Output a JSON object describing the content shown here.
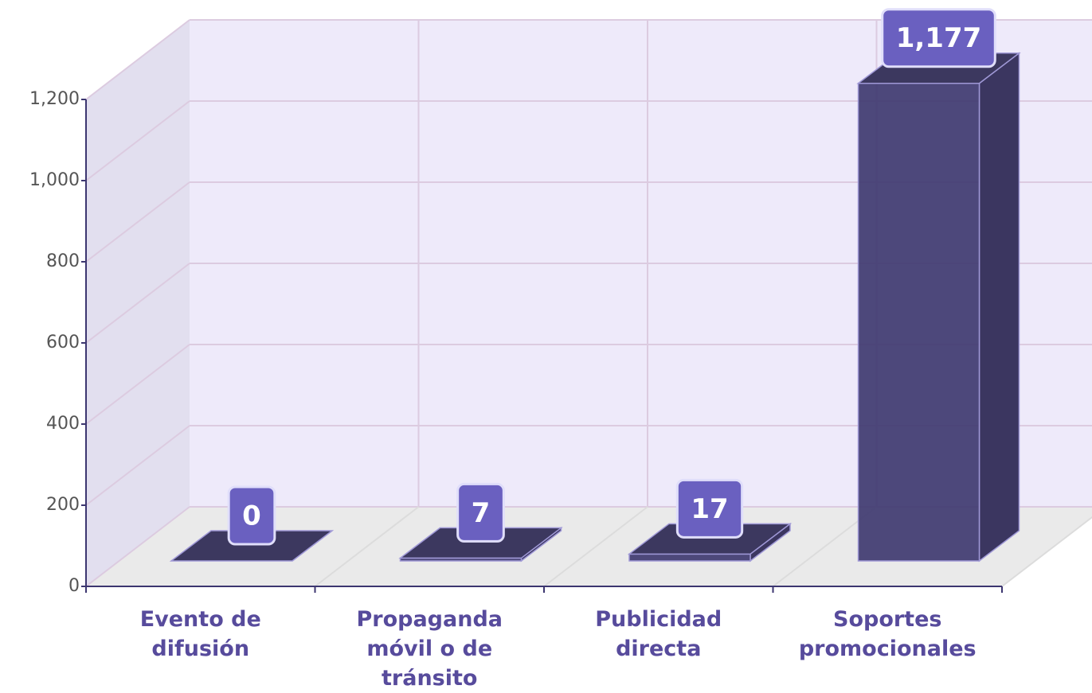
{
  "chart_data": {
    "type": "bar3d",
    "categories": [
      "Evento de difusión",
      "Propaganda móvil o de tránsito",
      "Publicidad directa",
      "Soportes promocionales"
    ],
    "values": [
      0,
      7,
      17,
      1177
    ],
    "value_labels": [
      "0",
      "7",
      "17",
      "1,177"
    ],
    "color": "#3f3a70",
    "ylim": [
      0,
      1200
    ],
    "yticks": [
      0,
      200,
      400,
      600,
      800,
      {
        "value": 1000,
        "label": "1,000"
      },
      {
        "value": 1200,
        "label": "1,200"
      }
    ],
    "grid": true
  }
}
